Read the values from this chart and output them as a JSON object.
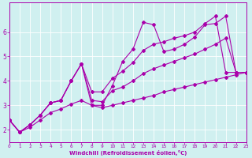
{
  "title": "",
  "xlabel": "Windchill (Refroidissement éolien,°C)",
  "ylabel": "",
  "background_color": "#d0f0f0",
  "line_color": "#aa00aa",
  "xlim": [
    0,
    23
  ],
  "ylim": [
    1.5,
    7.2
  ],
  "xticks": [
    0,
    1,
    2,
    3,
    4,
    5,
    6,
    7,
    8,
    9,
    10,
    11,
    12,
    13,
    14,
    15,
    16,
    17,
    18,
    19,
    20,
    21,
    22,
    23
  ],
  "yticks": [
    2,
    3,
    4,
    5,
    6
  ],
  "series": [
    {
      "x": [
        0,
        1,
        2,
        3,
        4,
        5,
        6,
        7,
        8,
        9,
        10,
        11,
        12,
        13,
        14,
        15,
        16,
        17,
        18,
        19,
        20,
        21,
        22,
        23
      ],
      "y": [
        2.4,
        1.9,
        2.2,
        2.6,
        3.1,
        3.2,
        4.0,
        4.7,
        3.0,
        3.0,
        3.8,
        4.8,
        5.3,
        6.4,
        6.3,
        5.2,
        5.3,
        5.5,
        5.8,
        6.3,
        6.35,
        6.65,
        4.35,
        4.35
      ]
    },
    {
      "x": [
        0,
        1,
        2,
        3,
        4,
        5,
        6,
        7,
        8,
        9,
        10,
        11,
        12,
        13,
        14,
        15,
        16,
        17,
        18,
        19,
        20,
        21,
        22,
        23
      ],
      "y": [
        2.4,
        1.9,
        2.2,
        2.6,
        3.1,
        3.2,
        4.0,
        4.7,
        3.55,
        3.55,
        4.1,
        4.4,
        4.75,
        5.25,
        5.5,
        5.6,
        5.75,
        5.85,
        6.0,
        6.35,
        6.65,
        4.35,
        4.35,
        4.35
      ]
    },
    {
      "x": [
        0,
        1,
        2,
        3,
        4,
        5,
        6,
        7,
        8,
        9,
        10,
        11,
        12,
        13,
        14,
        15,
        16,
        17,
        18,
        19,
        20,
        21,
        22,
        23
      ],
      "y": [
        2.4,
        1.9,
        2.2,
        2.6,
        3.1,
        3.2,
        4.0,
        4.7,
        3.2,
        3.15,
        3.6,
        3.75,
        4.0,
        4.3,
        4.5,
        4.65,
        4.8,
        4.95,
        5.1,
        5.3,
        5.5,
        5.75,
        4.35,
        4.35
      ]
    },
    {
      "x": [
        0,
        1,
        2,
        3,
        4,
        5,
        6,
        7,
        8,
        9,
        10,
        11,
        12,
        13,
        14,
        15,
        16,
        17,
        18,
        19,
        20,
        21,
        22,
        23
      ],
      "y": [
        2.4,
        1.9,
        2.1,
        2.4,
        2.7,
        2.85,
        3.05,
        3.2,
        3.0,
        2.9,
        3.0,
        3.1,
        3.2,
        3.3,
        3.4,
        3.55,
        3.65,
        3.75,
        3.85,
        3.95,
        4.05,
        4.15,
        4.25,
        4.35
      ]
    }
  ]
}
